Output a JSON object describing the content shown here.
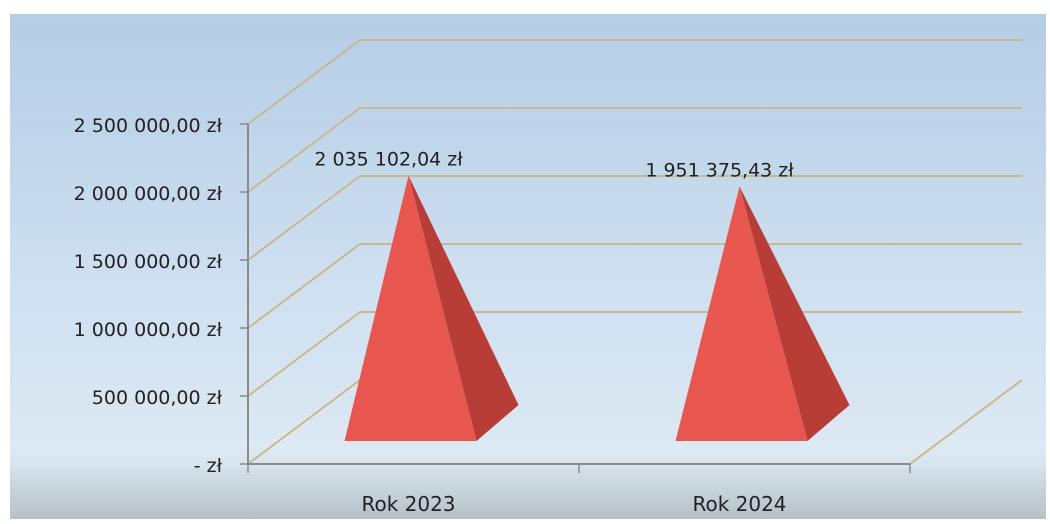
{
  "chart_data": {
    "type": "bar",
    "bar_shape": "pyramid",
    "three_d": true,
    "categories": [
      "Rok 2023",
      "Rok 2024"
    ],
    "values": [
      2035102.04,
      1951375.43
    ],
    "data_labels": [
      "2 035 102,04 zł",
      "1 951 375,43 zł"
    ],
    "ylim": [
      0,
      2500000
    ],
    "y_ticks": [
      0,
      500000,
      1000000,
      1500000,
      2000000,
      2500000
    ],
    "y_tick_labels": [
      "-   zł",
      "500 000,00 zł",
      "1 000 000,00 zł",
      "1 500 000,00 zł",
      "2 000 000,00 zł",
      "2 500 000,00 zł"
    ],
    "grid": true,
    "legend": "none",
    "bar_color": "#e8574f",
    "bar_side_color": "#b83d36"
  }
}
